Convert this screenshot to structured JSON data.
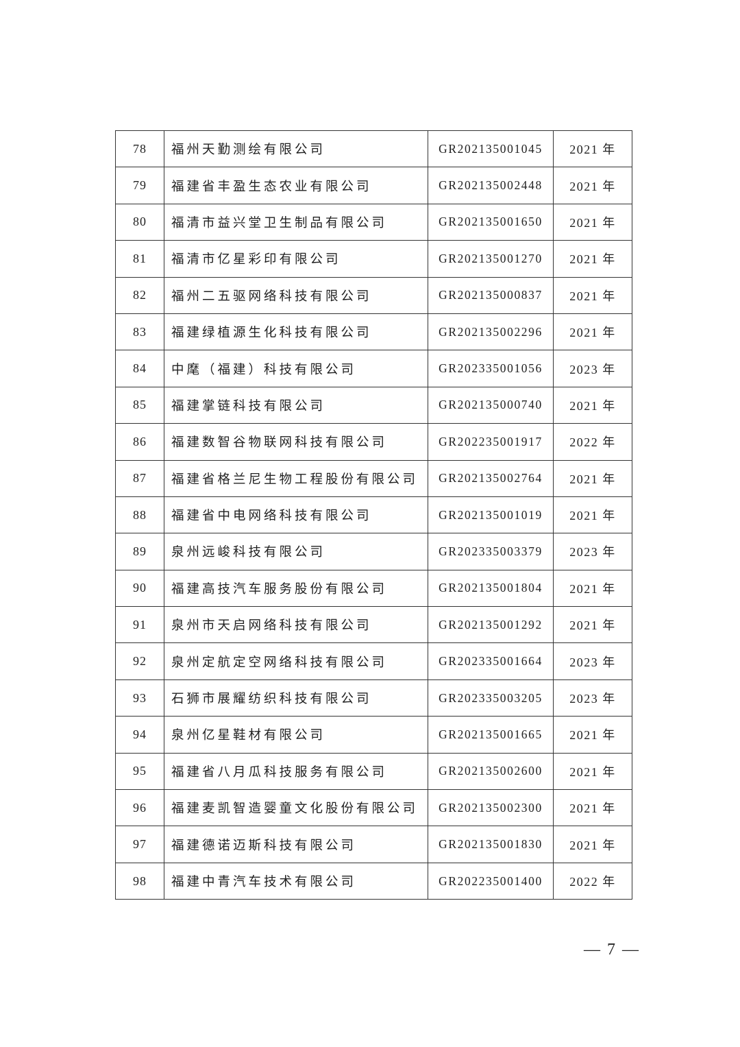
{
  "table": {
    "rows": [
      {
        "no": "78",
        "name": "福州天勤测绘有限公司",
        "code": "GR202135001045",
        "year": "2021 年"
      },
      {
        "no": "79",
        "name": "福建省丰盈生态农业有限公司",
        "code": "GR202135002448",
        "year": "2021 年"
      },
      {
        "no": "80",
        "name": "福清市益兴堂卫生制品有限公司",
        "code": "GR202135001650",
        "year": "2021 年"
      },
      {
        "no": "81",
        "name": "福清市亿星彩印有限公司",
        "code": "GR202135001270",
        "year": "2021 年"
      },
      {
        "no": "82",
        "name": "福州二五驱网络科技有限公司",
        "code": "GR202135000837",
        "year": "2021 年"
      },
      {
        "no": "83",
        "name": "福建绿植源生化科技有限公司",
        "code": "GR202135002296",
        "year": "2021 年"
      },
      {
        "no": "84",
        "name": "中麾（福建）科技有限公司",
        "code": "GR202335001056",
        "year": "2023 年"
      },
      {
        "no": "85",
        "name": "福建掌链科技有限公司",
        "code": "GR202135000740",
        "year": "2021 年"
      },
      {
        "no": "86",
        "name": "福建数智谷物联网科技有限公司",
        "code": "GR202235001917",
        "year": "2022 年"
      },
      {
        "no": "87",
        "name": "福建省格兰尼生物工程股份有限公司",
        "code": "GR202135002764",
        "year": "2021 年"
      },
      {
        "no": "88",
        "name": "福建省中电网络科技有限公司",
        "code": "GR202135001019",
        "year": "2021 年"
      },
      {
        "no": "89",
        "name": "泉州远峻科技有限公司",
        "code": "GR202335003379",
        "year": "2023 年"
      },
      {
        "no": "90",
        "name": "福建高技汽车服务股份有限公司",
        "code": "GR202135001804",
        "year": "2021 年"
      },
      {
        "no": "91",
        "name": "泉州市天启网络科技有限公司",
        "code": "GR202135001292",
        "year": "2021 年"
      },
      {
        "no": "92",
        "name": "泉州定航定空网络科技有限公司",
        "code": "GR202335001664",
        "year": "2023 年"
      },
      {
        "no": "93",
        "name": "石狮市展耀纺织科技有限公司",
        "code": "GR202335003205",
        "year": "2023 年"
      },
      {
        "no": "94",
        "name": "泉州亿星鞋材有限公司",
        "code": "GR202135001665",
        "year": "2021 年"
      },
      {
        "no": "95",
        "name": "福建省八月瓜科技服务有限公司",
        "code": "GR202135002600",
        "year": "2021 年"
      },
      {
        "no": "96",
        "name": "福建麦凯智造婴童文化股份有限公司",
        "code": "GR202135002300",
        "year": "2021 年"
      },
      {
        "no": "97",
        "name": "福建德诺迈斯科技有限公司",
        "code": "GR202135001830",
        "year": "2021 年"
      },
      {
        "no": "98",
        "name": "福建中青汽车技术有限公司",
        "code": "GR202235001400",
        "year": "2022 年"
      }
    ]
  },
  "footer": {
    "page_number": "— 7 —"
  }
}
